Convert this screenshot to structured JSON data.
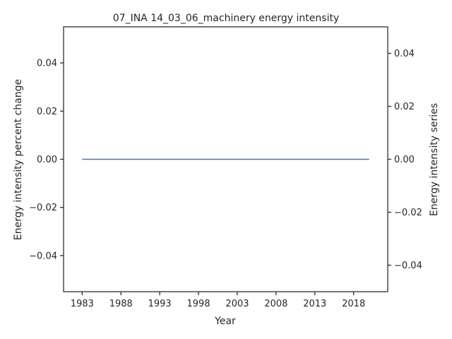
{
  "chart_data": {
    "type": "line",
    "title": "07_INA 14_03_06_machinery energy intensity",
    "xlabel": "Year",
    "ylabel_left": "Energy intensity percent change",
    "ylabel_right": "Energy intensity series",
    "x_ticks": [
      "1983",
      "1988",
      "1993",
      "1998",
      "2003",
      "2008",
      "2013",
      "2018"
    ],
    "y_left_ticks": [
      "−0.04",
      "−0.02",
      "0.00",
      "0.02",
      "0.04"
    ],
    "y_right_ticks": [
      "−0.04",
      "−0.02",
      "0.00",
      "0.02",
      "0.04"
    ],
    "xlim": [
      1980.6,
      2022.4
    ],
    "ylim_left": [
      -0.055,
      0.055
    ],
    "ylim_right": [
      -0.05,
      0.05
    ],
    "grid": false,
    "series": [
      {
        "axis": "left",
        "color": "#4c72b0",
        "x": [
          1983,
          2020
        ],
        "y": [
          0.0,
          0.0
        ]
      }
    ]
  }
}
